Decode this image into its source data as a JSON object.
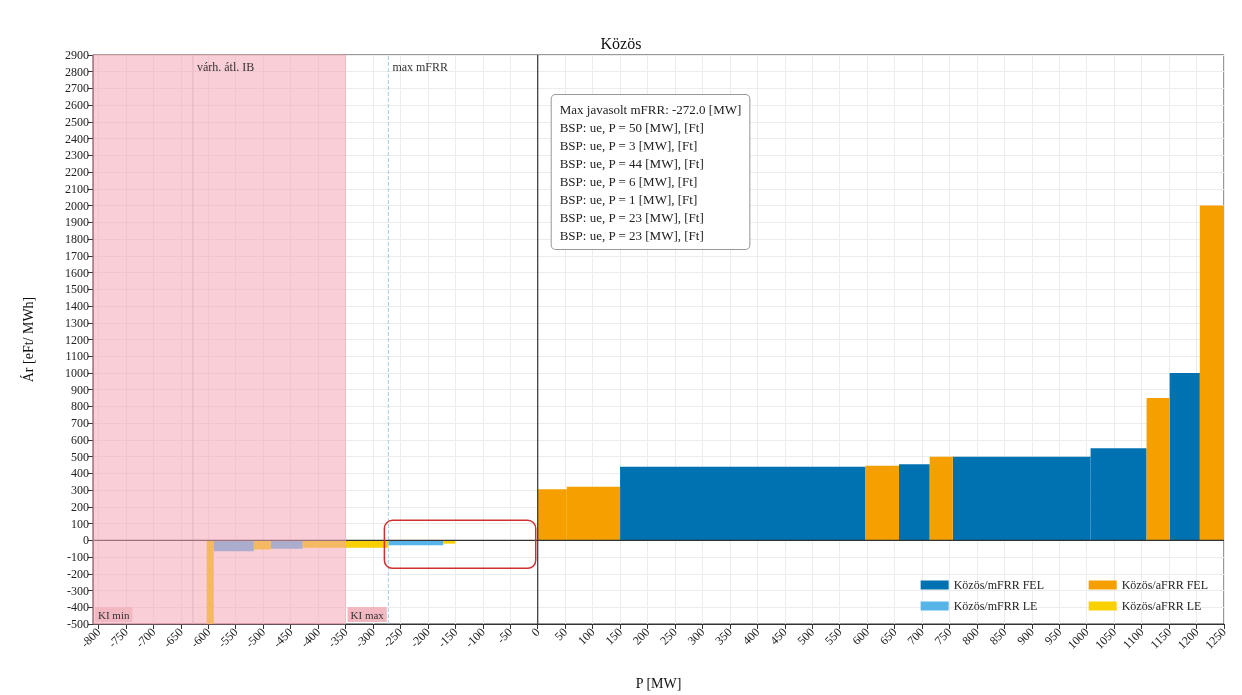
{
  "chart_data": {
    "type": "histogram",
    "title": "Közös",
    "xlabel": "P [MW]",
    "ylabel": "Ár [eFt/ MWh]",
    "bins": [
      -603,
      -590,
      -517,
      -486,
      -428,
      -272,
      -172,
      -150,
      0,
      53,
      150,
      597,
      658,
      714,
      756,
      1007,
      1109,
      1151,
      1206,
      1250
    ],
    "series": [
      {
        "name": "Közös/mFRR FEL",
        "color": "#0072b2",
        "values": [
          null,
          null,
          null,
          null,
          null,
          null,
          null,
          null,
          null,
          null,
          440,
          null,
          455,
          null,
          500,
          550,
          null,
          1000,
          null
        ]
      },
      {
        "name": "Közös/mFRR LE",
        "color": "#56b4e9",
        "values": [
          null,
          -65,
          null,
          -50,
          null,
          -30,
          null,
          null,
          null,
          null,
          null,
          null,
          null,
          null,
          null,
          null,
          null,
          null,
          null
        ]
      },
      {
        "name": "Közös/aFRR FEL",
        "color": "#f5a000",
        "values": [
          null,
          null,
          null,
          null,
          null,
          null,
          null,
          null,
          305,
          320,
          null,
          445,
          null,
          500,
          null,
          null,
          850,
          null,
          2000
        ]
      },
      {
        "name": "Közös/aFRR LE",
        "color": "#f9d100",
        "values": [
          -500,
          null,
          -55,
          null,
          -45,
          null,
          -20,
          null,
          null,
          null,
          null,
          null,
          null,
          null,
          null,
          null,
          null,
          null,
          null
        ]
      }
    ],
    "ref_lines": [
      {
        "axis": "x",
        "value": -272,
        "label": "max mFRR",
        "color": "#a6cee3",
        "line_style": "dashed"
      },
      {
        "axis": "x",
        "value": -628,
        "label": "várh. átl. IB",
        "color": "#c8c8c8",
        "line_style": "solid"
      }
    ],
    "bands": [
      {
        "axis": "x",
        "from": -810,
        "to": -350,
        "color": "#f4a6b4"
      }
    ],
    "annotations": [
      {
        "text": "KI min",
        "x": -810,
        "y": -500
      },
      {
        "text": "KI max",
        "x": -350,
        "y": -500
      },
      "Max javasolt mFRR: -272.0 [MW]",
      "BSP: ue, P = 50 [MW], [Ft]",
      "BSP: ue, P = 3 [MW], [Ft]",
      "BSP: ue, P = 44 [MW], [Ft]",
      "BSP: ue, P = 6 [MW], [Ft]",
      "BSP: ue, P = 1 [MW], [Ft]",
      "BSP: ue, P = 23 [MW], [Ft]",
      "BSP: ue, P = 23 [MW], [Ft]"
    ],
    "xlim": [
      -810,
      1250
    ],
    "ylim": [
      -500,
      2900
    ],
    "xticks": [
      -800,
      -750,
      -700,
      -650,
      -600,
      -550,
      -500,
      -450,
      -400,
      -350,
      -300,
      -250,
      -200,
      -150,
      -100,
      -50,
      0,
      50,
      100,
      150,
      200,
      250,
      300,
      350,
      400,
      450,
      500,
      550,
      600,
      650,
      700,
      750,
      800,
      850,
      900,
      950,
      1000,
      1050,
      1100,
      1150,
      1200,
      1250
    ],
    "yticks": [
      -500,
      -400,
      -300,
      -200,
      -100,
      0,
      100,
      200,
      300,
      400,
      500,
      600,
      700,
      800,
      900,
      1000,
      1100,
      1200,
      1300,
      1400,
      1500,
      1600,
      1700,
      1800,
      1900,
      2000,
      2100,
      2200,
      2300,
      2400,
      2500,
      2600,
      2700,
      2800,
      2900
    ],
    "grid": true,
    "legend": "bottom right"
  }
}
